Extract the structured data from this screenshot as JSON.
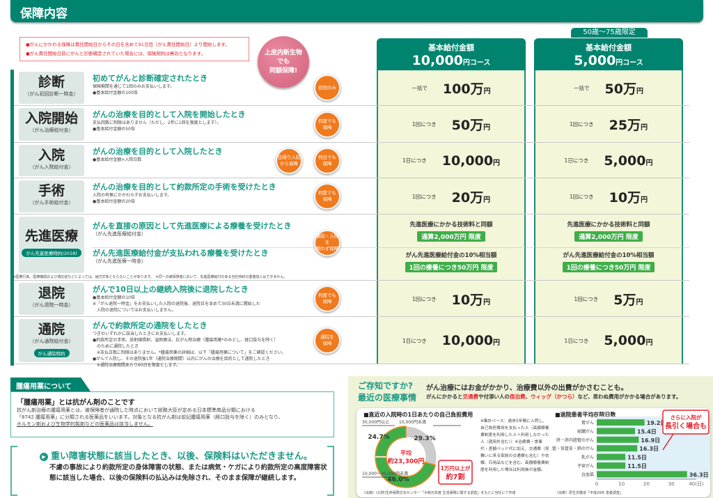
{
  "header": {
    "title": "保障内容"
  },
  "notice": [
    "●がんにかかわる保障は責任開始日からその日を含めて91日目（がん責任開始日）より開始します。",
    "●がん責任開始日前にがんと診断確定されていた場合には、保険契約は無効となります。"
  ],
  "pink_badge": "上皮内新生物\nでも\n同額保障!",
  "columns": [
    {
      "title": "基本給付金額",
      "amount": "10,000",
      "unit": "円コース"
    },
    {
      "title": "基本給付金額",
      "amount": "5,000",
      "unit": "円コース",
      "tag": "50歳～75歳限定"
    }
  ],
  "rows": [
    {
      "name": "診断",
      "sub": "（がん初回診断一時金）",
      "title": "初めてがんと診断確定されたとき",
      "lines": [
        "保険期間を通じて1回のみお支払いします。",
        "●基本給付金額の100倍"
      ],
      "badges": [
        "初回のみ"
      ],
      "values": [
        {
          "prefix": "一括で",
          "amount": "100万",
          "unit": "円"
        },
        {
          "prefix": "一括で",
          "amount": "50万",
          "unit": "円"
        }
      ]
    },
    {
      "name": "入院開始",
      "sub": "（がん治療給付金）",
      "title": "がんの治療を目的として入院を開始したとき",
      "lines": [
        "支払回数に制限はありません（ただし、2年に1回を限度とします）。",
        "●基本給付金額の50倍"
      ],
      "badges": [
        "何度でも\n保障"
      ],
      "values": [
        {
          "prefix": "1回につき",
          "amount": "50万",
          "unit": "円"
        },
        {
          "prefix": "1回につき",
          "amount": "25万",
          "unit": "円"
        }
      ]
    },
    {
      "name": "入院",
      "sub": "（がん入院給付金）",
      "title": "がんの治療を目的として入院したとき",
      "lines": [
        "●基本給付金額×入院日数"
      ],
      "badges": [
        "日帰り入院\nから保障",
        "何日でも\n保障"
      ],
      "values": [
        {
          "prefix": "1日につき",
          "amount": "10,000",
          "unit": "円"
        },
        {
          "prefix": "1日につき",
          "amount": "5,000",
          "unit": "円"
        }
      ]
    },
    {
      "name": "手術",
      "sub": "（がん手術給付金）",
      "title": "がんの治療を目的として約款所定の手術を受けたとき",
      "lines": [
        "入院の有無にかかわらずお支払いします。",
        "●基本給付金額の20倍"
      ],
      "badges": [
        "何度でも\n保障"
      ],
      "values": [
        {
          "prefix": "1回につき",
          "amount": "20万",
          "unit": "円"
        },
        {
          "prefix": "1回につき",
          "amount": "10万",
          "unit": "円"
        }
      ]
    },
    {
      "name": "先進医療",
      "tag": "がん先進医療特約(2018)",
      "title": "がんを直接の原因として先進医療による療養を受けたとき",
      "sub1": "（がん先進医療給付金）",
      "title2": "がん先進医療給付金が支払われる療養を受けたとき",
      "sub2": "（がん先進医療一時金）",
      "badges": [
        "通院・入院を\n問わず保障"
      ],
      "adv": [
        {
          "t1": "先進医療にかかる技術料と同額",
          "g1": "通算2,000万円 限度",
          "t2": "がん先進医療給付金の10%相当額",
          "g2": "1回の療養につき50万円 限度"
        },
        {
          "t1": "先進医療にかかる技術料と同額",
          "g1": "通算2,000万円 限度",
          "t2": "がん先進医療給付金の10%相当額",
          "g2": "1回の療養につき50万円 限度"
        }
      ],
      "note": "※医療行為、医療機関および適応症などによっては、給付対象とならないことがあります。　※同一の被保険者において、先進医療給付のある当社特約の重複加入はできません。"
    },
    {
      "name": "退院",
      "sub": "（がん退院一時金）",
      "title": "がんで10日以上の継続入院後に退院したとき",
      "lines": [
        "●基本給付金額の10倍",
        "※「がん退院一時金」をお支払いした入院の退院後、退院日を含めて30日未満に開始した",
        "　入院の退院についてはお支払いしません。"
      ],
      "badges": [
        "何度でも\n保障"
      ],
      "values": [
        {
          "prefix": "1回につき",
          "amount": "10万",
          "unit": "円"
        },
        {
          "prefix": "1回につき",
          "amount": "5万",
          "unit": "円"
        }
      ]
    },
    {
      "name": "通院",
      "sub": "（がん通院給付金）",
      "tag": "がん通院特約",
      "title": "がんで約款所定の通院をしたとき",
      "lines": [
        "つぎのいずれかに該当したときにお支払いします。",
        "●約款所定の手術、放射線照射、温熱療法、抗がん剤治療（腫瘍用薬*のみとし、経口投与を除く）",
        "　のために通院したとき",
        "　※支払日数に制限はありません。*腫瘍用薬の詳細は、以下「腫瘍用薬について」をご確認ください。",
        "●がんで入院し、その退院後1年（通院治療期間）以内にがんの治療を目的として通院したとき",
        "　※通院治療期間あたり60日を限度とします。"
      ],
      "badges": [
        "通院を\n保障"
      ],
      "values": [
        {
          "prefix": "1日につき",
          "amount": "10,000",
          "unit": "円"
        },
        {
          "prefix": "1日につき",
          "amount": "5,000",
          "unit": "円"
        }
      ]
    }
  ],
  "tumor": {
    "tab": "腫瘍用薬について",
    "ruby": "しゅ よう よう やく",
    "heading": "「腫瘍用薬」とは抗がん剤のことです",
    "lines": [
      "抗がん剤治療の腫瘍用薬とは、被保険者が通院した時点において総務大臣が定める日本標準商品分類における",
      "「8742 腫瘍用薬」に分類される医薬品をいいます。対象となる抗がん剤は前記腫瘍用薬（経口投与を除く）のみとなり、"
    ],
    "underlined": "ホルモン剤および生物学的製剤などの医薬品は該当しません。"
  },
  "waiver": {
    "heading": "重い障害状態に該当したとき、以後、保険料はいただきません。",
    "body": "不慮の事故により約款所定の身体障害の状態、または病気・ケガにより約款所定の高度障害状態に該当した場合、以後の保険料の払込みは免除され、そのまま保障が継続します。"
  },
  "info": {
    "q1": "ご存知ですか?",
    "q2": "最近の医療事情",
    "main": "がん治療にはお金がかかり、治療費以外の出費がかさむことも。",
    "sub_pre": "がんにかかると",
    "sub_r1": "交通費",
    "sub_m1": "や付添い人の",
    "sub_r2": "宿泊費",
    "sub_m2": "、",
    "sub_r3": "ウィッグ（かつら）",
    "sub_post": "など、思わぬ費用がかかる場合があります。",
    "notes": "※集計ベース：過去5年間に入院し、自己負担費用を支払った人（高額療養費制度を利用した人＋利用しなかった人（適用外含む））※治療費・食事代・差額ベッド代に加え、交通費（見舞いに来る家族の交通費も含む）や衣類、日用品などを含む。高額療養費制度を利用した場合は利用後の金額。",
    "source1": "〔出典〕(公財)生命保険文化センター「令和元年度 生活保障に関する調査」をもとに当社にて作成",
    "source2": "〔出典〕厚生労働省「平成29年 患者調査」",
    "center1": "平均",
    "center2": "約23,300円",
    "callout1": "1万円以上が\n約7割",
    "callout2": "さらに入院が\n長引く場合も"
  },
  "chart_data": [
    {
      "type": "pie",
      "title": "■直近の入院時の1日あたりの自己負担費用",
      "categories": [
        "10,000円未満",
        "10,000〜30,000円未満",
        "30,000円以上"
      ],
      "values": [
        29.3,
        46.0,
        24.7
      ],
      "labels": [
        "29.3%",
        "46.0%",
        "24.7%"
      ],
      "colors": [
        "#cccccc",
        "#3fae49",
        "#3fae49"
      ]
    },
    {
      "type": "bar",
      "orientation": "horizontal",
      "title": "■退院患者平均在院日数",
      "categories": [
        "胃がん",
        "結腸がん",
        "肝・肝内胆管のがん",
        "気管・気管支・肺のがん",
        "乳がん",
        "子宮がん",
        "白血病"
      ],
      "values": [
        19.2,
        15.4,
        16.9,
        16.3,
        11.5,
        11.5,
        36.3
      ],
      "value_labels": [
        "19.2日",
        "15.4日",
        "16.9日",
        "16.3日",
        "11.5日",
        "11.5日",
        "36.3日"
      ],
      "xlim": [
        0,
        40
      ],
      "xticks": [
        "0",
        "10",
        "20",
        "30",
        "40(日)"
      ],
      "color": "#3fae49"
    }
  ]
}
